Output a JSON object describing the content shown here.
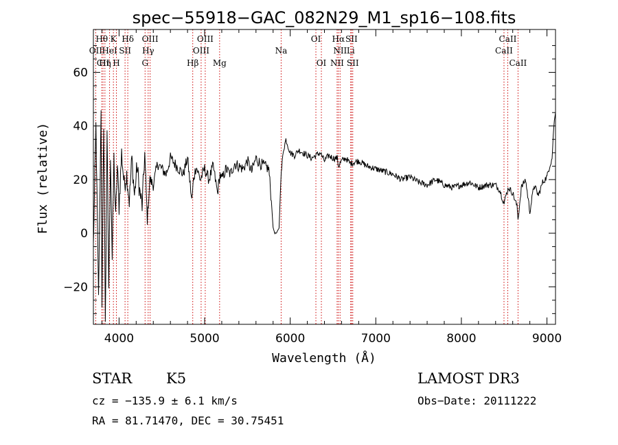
{
  "chart_data": {
    "type": "line",
    "title": "spec−55918−GAC_082N29_M1_sp16−108.fits",
    "xlabel": "Wavelength (Å)",
    "ylabel": "Flux (relative)",
    "xlim": [
      3700,
      9100
    ],
    "ylim": [
      -34,
      76
    ],
    "x_ticks": [
      4000,
      5000,
      6000,
      7000,
      8000,
      9000
    ],
    "y_ticks": [
      -20,
      0,
      20,
      40,
      60
    ],
    "x_tick_labels": [
      "4000",
      "5000",
      "6000",
      "7000",
      "8000",
      "9000"
    ],
    "y_tick_labels": [
      "−20",
      "0",
      "20",
      "40",
      "60"
    ],
    "series": [
      {
        "name": "spectrum",
        "color": "#000000",
        "x": [
          3700,
          3730,
          3760,
          3790,
          3800,
          3820,
          3840,
          3860,
          3880,
          3900,
          3920,
          3940,
          3960,
          3980,
          4000,
          4030,
          4060,
          4090,
          4120,
          4150,
          4180,
          4210,
          4240,
          4270,
          4300,
          4330,
          4360,
          4400,
          4450,
          4500,
          4550,
          4600,
          4650,
          4700,
          4750,
          4800,
          4850,
          4870,
          4900,
          4950,
          5000,
          5050,
          5100,
          5150,
          5180,
          5200,
          5250,
          5300,
          5350,
          5400,
          5450,
          5500,
          5550,
          5600,
          5650,
          5700,
          5750,
          5780,
          5800,
          5820,
          5840,
          5870,
          5890,
          5900,
          5920,
          5950,
          6000,
          6050,
          6100,
          6150,
          6200,
          6250,
          6300,
          6350,
          6400,
          6450,
          6500,
          6550,
          6565,
          6600,
          6650,
          6700,
          6800,
          6900,
          7000,
          7100,
          7200,
          7300,
          7400,
          7500,
          7600,
          7700,
          7800,
          7900,
          8000,
          8100,
          8200,
          8300,
          8400,
          8450,
          8500,
          8520,
          8550,
          8600,
          8650,
          8662,
          8700,
          8750,
          8800,
          8850,
          8900,
          8950,
          9000,
          9030,
          9060,
          9080,
          9100
        ],
        "values": [
          -5,
          40,
          -25,
          48,
          -30,
          42,
          -32,
          35,
          -20,
          30,
          -10,
          28,
          5,
          25,
          10,
          30,
          18,
          22,
          12,
          28,
          14,
          25,
          16,
          10,
          30,
          5,
          20,
          18,
          26,
          24,
          22,
          28,
          26,
          24,
          22,
          28,
          12,
          20,
          25,
          20,
          24,
          20,
          25,
          15,
          22,
          20,
          24,
          22,
          26,
          25,
          24,
          27,
          23,
          28,
          26,
          25,
          24,
          12,
          2,
          0,
          0,
          2,
          20,
          24,
          31,
          35,
          30,
          29,
          31,
          30,
          29,
          28,
          29,
          30,
          27,
          29,
          28,
          28,
          25,
          27,
          28,
          26,
          27,
          25,
          24,
          23,
          22,
          20,
          21,
          19,
          18,
          20,
          18,
          17,
          18,
          19,
          17,
          18,
          18,
          16,
          11,
          14,
          17,
          15,
          10,
          5,
          17,
          20,
          8,
          18,
          14,
          19,
          21,
          25,
          28,
          40,
          45
        ]
      }
    ],
    "line_markers": {
      "color": "#cc0000",
      "lines": [
        {
          "name": "OII",
          "wavelength": 3727
        },
        {
          "name": "Hθ",
          "wavelength": 3798
        },
        {
          "name": "CII",
          "wavelength": 3813
        },
        {
          "name": "Hη",
          "wavelength": 3835
        },
        {
          "name": "K",
          "wavelength": 3934
        },
        {
          "name": "H",
          "wavelength": 3969
        },
        {
          "name": "HeI",
          "wavelength": 3889
        },
        {
          "name": "SII",
          "wavelength": 4070
        },
        {
          "name": "Hδ",
          "wavelength": 4102
        },
        {
          "name": "G",
          "wavelength": 4304
        },
        {
          "name": "Hγ",
          "wavelength": 4340
        },
        {
          "name": "OIII",
          "wavelength": 4363
        },
        {
          "name": "Hβ",
          "wavelength": 4861
        },
        {
          "name": "OIII",
          "wavelength": 4959
        },
        {
          "name": "OIII",
          "wavelength": 5007
        },
        {
          "name": "Mg",
          "wavelength": 5175
        },
        {
          "name": "Na",
          "wavelength": 5894
        },
        {
          "name": "OI",
          "wavelength": 6300
        },
        {
          "name": "OI",
          "wavelength": 6364
        },
        {
          "name": "NII",
          "wavelength": 6548
        },
        {
          "name": "Hα",
          "wavelength": 6563
        },
        {
          "name": "NII",
          "wavelength": 6583
        },
        {
          "name": "Li",
          "wavelength": 6707
        },
        {
          "name": "SII",
          "wavelength": 6716
        },
        {
          "name": "SII",
          "wavelength": 6731
        },
        {
          "name": "CaII",
          "wavelength": 8498
        },
        {
          "name": "CaII",
          "wavelength": 8542
        },
        {
          "name": "CaII",
          "wavelength": 8662
        }
      ]
    },
    "line_label_rows": [
      [
        {
          "text": "Hθ",
          "wavelength": 3798
        },
        {
          "text": "K",
          "wavelength": 3934
        },
        {
          "text": "Hδ",
          "wavelength": 4102
        },
        {
          "text": "OIII",
          "wavelength": 4363
        },
        {
          "text": "OIII",
          "wavelength": 5007
        },
        {
          "text": "OI",
          "wavelength": 6300
        },
        {
          "text": "Hα",
          "wavelength": 6563
        },
        {
          "text": "SII",
          "wavelength": 6716
        },
        {
          "text": "CaII",
          "wavelength": 8542
        }
      ],
      [
        {
          "text": "OII",
          "wavelength": 3727
        },
        {
          "text": "HeI",
          "wavelength": 3889
        },
        {
          "text": "SII",
          "wavelength": 4070
        },
        {
          "text": "Hγ",
          "wavelength": 4340
        },
        {
          "text": "OIII",
          "wavelength": 4959
        },
        {
          "text": "Na",
          "wavelength": 5894
        },
        {
          "text": "NII",
          "wavelength": 6583
        },
        {
          "text": "Li",
          "wavelength": 6707
        },
        {
          "text": "CaII",
          "wavelength": 8498
        }
      ],
      [
        {
          "text": "CII",
          "wavelength": 3813
        },
        {
          "text": "Hη",
          "wavelength": 3835
        },
        {
          "text": "H",
          "wavelength": 3969
        },
        {
          "text": "G",
          "wavelength": 4304
        },
        {
          "text": "Hβ",
          "wavelength": 4861
        },
        {
          "text": "Mg",
          "wavelength": 5175
        },
        {
          "text": "OI",
          "wavelength": 6364
        },
        {
          "text": "NII",
          "wavelength": 6548
        },
        {
          "text": "SII",
          "wavelength": 6731
        },
        {
          "text": "CaII",
          "wavelength": 8662
        }
      ]
    ]
  },
  "info": {
    "object_class": "STAR",
    "subclass": "K5",
    "survey": "LAMOST DR3",
    "redshift": "cz = −135.9 ± 6.1 km/s",
    "obs_date": "Obs−Date: 20111222",
    "coords": "RA =  81.71470, DEC =  30.75451"
  }
}
